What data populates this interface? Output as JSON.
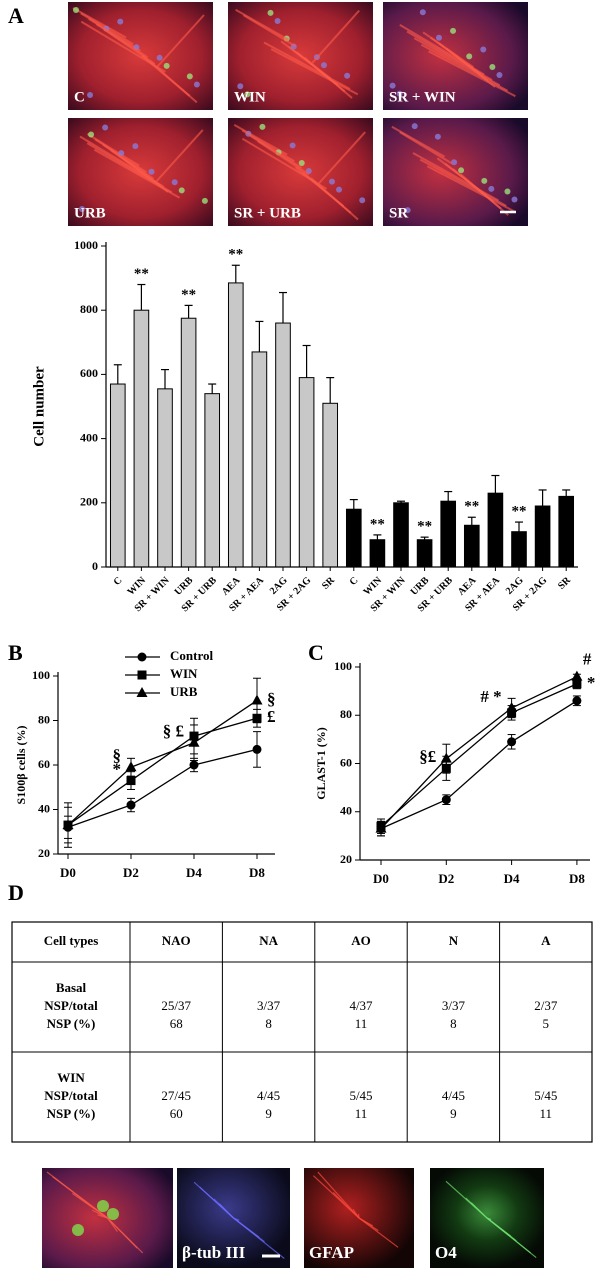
{
  "panel_labels": [
    "A",
    "B",
    "C",
    "D"
  ],
  "micrographs": {
    "labels": [
      "C",
      "WIN",
      "SR + WIN",
      "URB",
      "SR + URB",
      "SR"
    ]
  },
  "chart_data": [
    {
      "type": "bar",
      "ylabel": "Cell number",
      "categories": [
        "C",
        "WIN",
        "SR + WIN",
        "URB",
        "SR + URB",
        "AEA",
        "SR + AEA",
        "2AG",
        "SR + 2AG",
        "SR",
        "C",
        "WIN",
        "SR + WIN",
        "URB",
        "SR + URB",
        "AEA",
        "SR + AEA",
        "2AG",
        "SR + 2AG",
        "SR"
      ],
      "ylim": [
        0,
        1000
      ],
      "yticks": [
        0,
        200,
        400,
        600,
        800,
        1000
      ],
      "series": [
        {
          "color": "#c8c8c8",
          "values": [
            570,
            800,
            555,
            775,
            540,
            885,
            670,
            760,
            590,
            510,
            null,
            null,
            null,
            null,
            null,
            null,
            null,
            null,
            null,
            null
          ],
          "errors": [
            60,
            80,
            60,
            40,
            30,
            55,
            95,
            95,
            100,
            80,
            null,
            null,
            null,
            null,
            null,
            null,
            null,
            null,
            null,
            null
          ],
          "significance": [
            null,
            "**",
            null,
            "**",
            null,
            "**",
            null,
            null,
            null,
            null,
            null,
            null,
            null,
            null,
            null,
            null,
            null,
            null,
            null,
            null
          ]
        },
        {
          "color": "#000000",
          "values": [
            null,
            null,
            null,
            null,
            null,
            null,
            null,
            null,
            null,
            null,
            180,
            85,
            200,
            85,
            205,
            130,
            230,
            110,
            190,
            220
          ],
          "errors": [
            null,
            null,
            null,
            null,
            null,
            null,
            null,
            null,
            null,
            null,
            30,
            15,
            5,
            8,
            30,
            25,
            55,
            30,
            50,
            20
          ],
          "significance": [
            null,
            null,
            null,
            null,
            null,
            null,
            null,
            null,
            null,
            null,
            null,
            "**",
            null,
            "**",
            null,
            "**",
            null,
            "**",
            null,
            null
          ]
        }
      ]
    },
    {
      "type": "line",
      "ylabel": "S100β cells (%)",
      "categories": [
        "D0",
        "D2",
        "D4",
        "D8"
      ],
      "ylim": [
        20,
        100
      ],
      "yticks": [
        20,
        40,
        60,
        80,
        100
      ],
      "legend": "top",
      "series": [
        {
          "name": "Control",
          "color": "#000000",
          "marker": "circle",
          "values": [
            32,
            42,
            60,
            67
          ],
          "errors": [
            5,
            3,
            3,
            8
          ]
        },
        {
          "name": "WIN",
          "color": "#000000",
          "marker": "square",
          "values": [
            33,
            53,
            73,
            81
          ],
          "errors": [
            8,
            4,
            8,
            4
          ]
        },
        {
          "name": "URB",
          "color": "#000000",
          "marker": "triangle",
          "values": [
            33,
            59,
            70,
            89
          ],
          "errors": [
            10,
            4,
            8,
            10
          ]
        }
      ],
      "annotations": [
        {
          "text": "§",
          "category": "D2",
          "series": "URB",
          "side": "left"
        },
        {
          "text": "*",
          "category": "D2",
          "series": "WIN",
          "side": "left"
        },
        {
          "text": "§ £",
          "category": "D4",
          "series": "URB",
          "side": "left"
        },
        {
          "text": "§",
          "category": "D8",
          "series": "URB",
          "side": "right"
        },
        {
          "text": "£",
          "category": "D8",
          "series": "WIN",
          "side": "right"
        }
      ]
    },
    {
      "type": "line",
      "ylabel": "GLAST-1 (%)",
      "categories": [
        "D0",
        "D2",
        "D4",
        "D8"
      ],
      "ylim": [
        20,
        100
      ],
      "yticks": [
        20,
        40,
        60,
        80,
        100
      ],
      "series": [
        {
          "name": "Control",
          "color": "#000000",
          "marker": "circle",
          "values": [
            33,
            45,
            69,
            86
          ],
          "errors": [
            3,
            2,
            3,
            2
          ]
        },
        {
          "name": "WIN",
          "color": "#000000",
          "marker": "square",
          "values": [
            34,
            58,
            81,
            93
          ],
          "errors": [
            3,
            5,
            3,
            2
          ]
        },
        {
          "name": "URB",
          "color": "#000000",
          "marker": "triangle",
          "values": [
            33,
            62,
            83,
            96
          ],
          "errors": [
            3,
            6,
            4,
            1
          ]
        }
      ],
      "annotations": [
        {
          "text": "§£",
          "category": "D2",
          "series": "WIN",
          "side": "left"
        },
        {
          "text": "# *",
          "category": "D4",
          "series": "URB",
          "side": "left"
        },
        {
          "text": "#",
          "category": "D8",
          "series": "URB",
          "side": "above"
        },
        {
          "text": "*",
          "category": "D8",
          "series": "WIN",
          "side": "right"
        }
      ]
    }
  ],
  "table": {
    "header": [
      "Cell types",
      "NAO",
      "NA",
      "AO",
      "N",
      "A"
    ],
    "groups": [
      {
        "name": "Basal",
        "rows": [
          {
            "label": "NSP/total",
            "cells": [
              "25/37",
              "3/37",
              "4/37",
              "3/37",
              "2/37"
            ]
          },
          {
            "label": "NSP (%)",
            "cells": [
              68,
              8,
              11,
              8,
              5
            ]
          }
        ]
      },
      {
        "name": "WIN",
        "rows": [
          {
            "label": "NSP/total",
            "cells": [
              "27/45",
              "4/45",
              "5/45",
              "4/45",
              "5/45"
            ]
          },
          {
            "label": "NSP (%)",
            "cells": [
              60,
              9,
              11,
              9,
              11
            ]
          }
        ]
      }
    ]
  },
  "stains": {
    "labels": [
      "β-tub III",
      "GFAP",
      "O4"
    ]
  }
}
